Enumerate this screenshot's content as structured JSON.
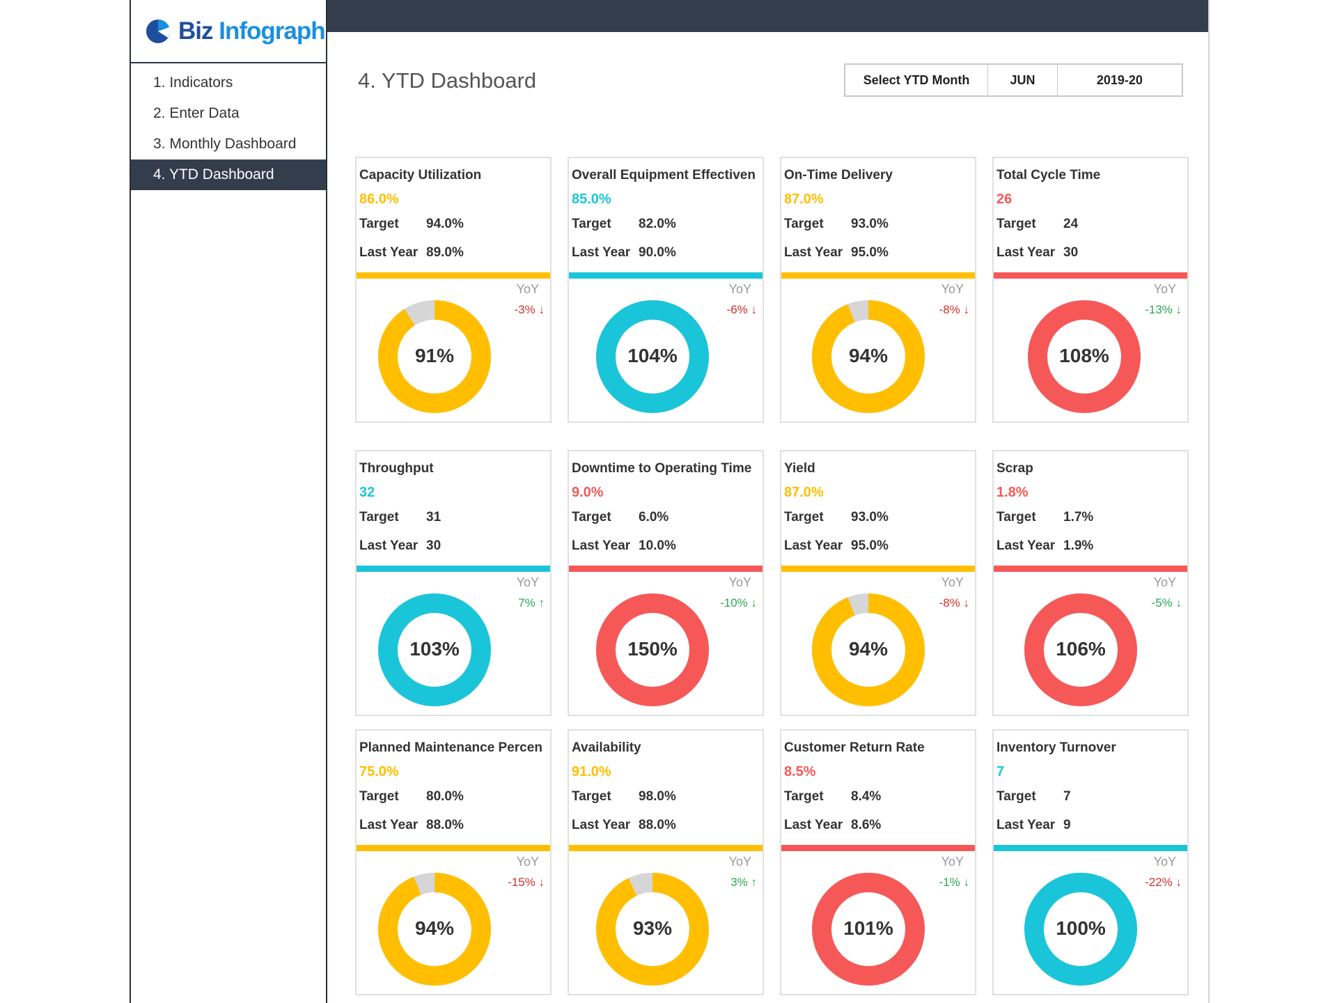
{
  "brand": {
    "name_part1": "Biz",
    "name_part2": "Infograph"
  },
  "nav": [
    {
      "label": "1. Indicators"
    },
    {
      "label": "2. Enter Data"
    },
    {
      "label": "3. Monthly Dashboard"
    },
    {
      "label": "4. YTD Dashboard",
      "active": true
    }
  ],
  "page": {
    "title": "4. YTD Dashboard"
  },
  "selector": {
    "label": "Select YTD Month",
    "month": "JUN",
    "year": "2019-20"
  },
  "colors": {
    "yellow": "#FFBF00",
    "cyan": "#1BC5D9",
    "red": "#F65858",
    "gray": "#D6D6D6",
    "dark": "#343D4B",
    "down_red": "#D0312D",
    "green": "#2AA652"
  },
  "labels": {
    "target": "Target",
    "last_year": "Last Year",
    "yoy": "YoY"
  },
  "cards": [
    {
      "title": "Capacity Utilization",
      "value": "86.0%",
      "target": "94.0%",
      "last_year": "89.0%",
      "achievement": "91%",
      "achievement_value": 91,
      "yoy": "-3% ↓",
      "yoy_color": "down_red",
      "color": "yellow"
    },
    {
      "title": "Overall Equipment Effectiven",
      "value": "85.0%",
      "target": "82.0%",
      "last_year": "90.0%",
      "achievement": "104%",
      "achievement_value": 104,
      "yoy": "-6% ↓",
      "yoy_color": "down_red",
      "color": "cyan"
    },
    {
      "title": "On-Time Delivery",
      "value": "87.0%",
      "target": "93.0%",
      "last_year": "95.0%",
      "achievement": "94%",
      "achievement_value": 94,
      "yoy": "-8% ↓",
      "yoy_color": "down_red",
      "color": "yellow"
    },
    {
      "title": "Total Cycle Time",
      "value": "26",
      "target": "24",
      "last_year": "30",
      "achievement": "108%",
      "achievement_value": 108,
      "yoy": "-13% ↓",
      "yoy_color": "green",
      "color": "red"
    },
    {
      "title": "Throughput",
      "value": "32",
      "target": "31",
      "last_year": "30",
      "achievement": "103%",
      "achievement_value": 103,
      "yoy": "7% ↑",
      "yoy_color": "green",
      "color": "cyan"
    },
    {
      "title": "Downtime to Operating Time",
      "value": "9.0%",
      "target": "6.0%",
      "last_year": "10.0%",
      "achievement": "150%",
      "achievement_value": 150,
      "yoy": "-10% ↓",
      "yoy_color": "green",
      "color": "red"
    },
    {
      "title": "Yield",
      "value": "87.0%",
      "target": "93.0%",
      "last_year": "95.0%",
      "achievement": "94%",
      "achievement_value": 94,
      "yoy": "-8% ↓",
      "yoy_color": "down_red",
      "color": "yellow"
    },
    {
      "title": "Scrap",
      "value": "1.8%",
      "target": "1.7%",
      "last_year": "1.9%",
      "achievement": "106%",
      "achievement_value": 106,
      "yoy": "-5% ↓",
      "yoy_color": "green",
      "color": "red"
    },
    {
      "title": "Planned Maintenance Percen",
      "value": "75.0%",
      "target": "80.0%",
      "last_year": "88.0%",
      "achievement": "94%",
      "achievement_value": 94,
      "yoy": "-15% ↓",
      "yoy_color": "down_red",
      "color": "yellow"
    },
    {
      "title": "Availability",
      "value": "91.0%",
      "target": "98.0%",
      "last_year": "88.0%",
      "achievement": "93%",
      "achievement_value": 93,
      "yoy": "3% ↑",
      "yoy_color": "green",
      "color": "yellow"
    },
    {
      "title": "Customer Return Rate",
      "value": "8.5%",
      "target": "8.4%",
      "last_year": "8.6%",
      "achievement": "101%",
      "achievement_value": 101,
      "yoy": "-1% ↓",
      "yoy_color": "green",
      "color": "red"
    },
    {
      "title": "Inventory Turnover",
      "value": "7",
      "target": "7",
      "last_year": "9",
      "achievement": "100%",
      "achievement_value": 100,
      "yoy": "-22% ↓",
      "yoy_color": "down_red",
      "color": "cyan"
    }
  ]
}
